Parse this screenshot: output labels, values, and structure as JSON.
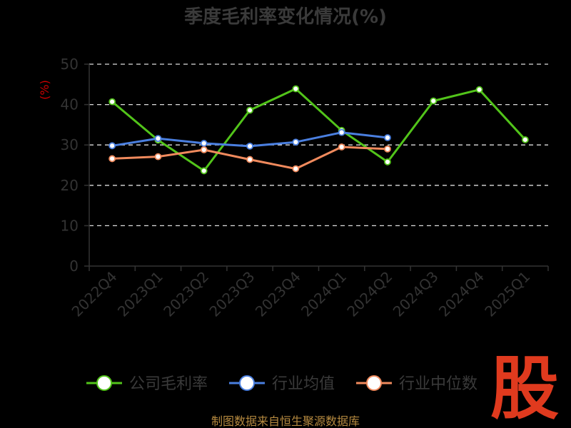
{
  "chart_data": {
    "type": "line",
    "title": "季度毛利率变化情况(%)",
    "ylabel": "(%)",
    "xlabel": "",
    "ylim": [
      0,
      50
    ],
    "yticks": [
      0,
      10,
      20,
      30,
      40,
      50
    ],
    "grid": "horizontal dashed",
    "legend_position": "bottom",
    "categories": [
      "2022Q4",
      "2023Q1",
      "2023Q2",
      "2023Q3",
      "2023Q4",
      "2024Q1",
      "2024Q2",
      "2024Q3",
      "2024Q4",
      "2025Q1"
    ],
    "series": [
      {
        "name": "公司毛利率",
        "color": "#52c41a",
        "values": [
          40.7,
          31.2,
          23.6,
          38.6,
          43.9,
          33.6,
          25.8,
          40.9,
          43.7,
          31.3
        ]
      },
      {
        "name": "行业均值",
        "color": "#4a7fe0",
        "values": [
          29.8,
          31.6,
          30.4,
          29.7,
          30.7,
          33.1,
          31.8,
          null,
          null,
          null
        ]
      },
      {
        "name": "行业中位数",
        "color": "#f08a5d",
        "values": [
          26.6,
          27.1,
          28.8,
          26.4,
          24.1,
          29.5,
          29.0,
          null,
          null,
          null
        ]
      }
    ]
  },
  "footer": {
    "source": "制图数据来自恒生聚源数据库"
  },
  "watermark": {
    "text": "股"
  }
}
